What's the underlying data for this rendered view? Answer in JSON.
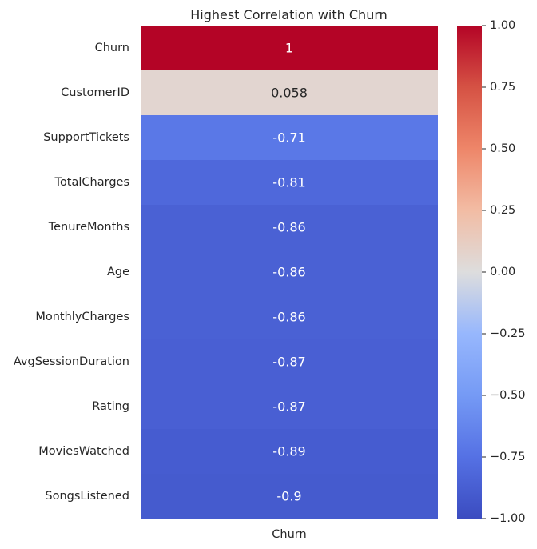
{
  "chart_data": {
    "type": "heatmap",
    "title": "Highest Correlation with Churn",
    "xlabel": "",
    "ylabel": "",
    "columns": [
      "Churn"
    ],
    "rows": [
      "Churn",
      "CustomerID",
      "SupportTickets",
      "TotalCharges",
      "TenureMonths",
      "Age",
      "MonthlyCharges",
      "AvgSessionDuration",
      "Rating",
      "MoviesWatched",
      "SongsListened"
    ],
    "values": [
      1,
      0.058,
      -0.71,
      -0.81,
      -0.86,
      -0.86,
      -0.86,
      -0.87,
      -0.87,
      -0.89,
      -0.9
    ],
    "cell_labels": [
      "1",
      "0.058",
      "-0.71",
      "-0.81",
      "-0.86",
      "-0.86",
      "-0.86",
      "-0.87",
      "-0.87",
      "-0.89",
      "-0.9"
    ],
    "colormap": "coolwarm",
    "colorbar": {
      "range": [
        -1.0,
        1.0
      ],
      "ticks": [
        1.0,
        0.75,
        0.5,
        0.25,
        0.0,
        -0.25,
        -0.5,
        -0.75,
        -1.0
      ],
      "tick_labels": [
        "1.00",
        "0.75",
        "0.50",
        "0.25",
        "0.00",
        "−0.25",
        "−0.50",
        "−0.75",
        "−1.00"
      ]
    },
    "grid": false,
    "annotated": true
  }
}
